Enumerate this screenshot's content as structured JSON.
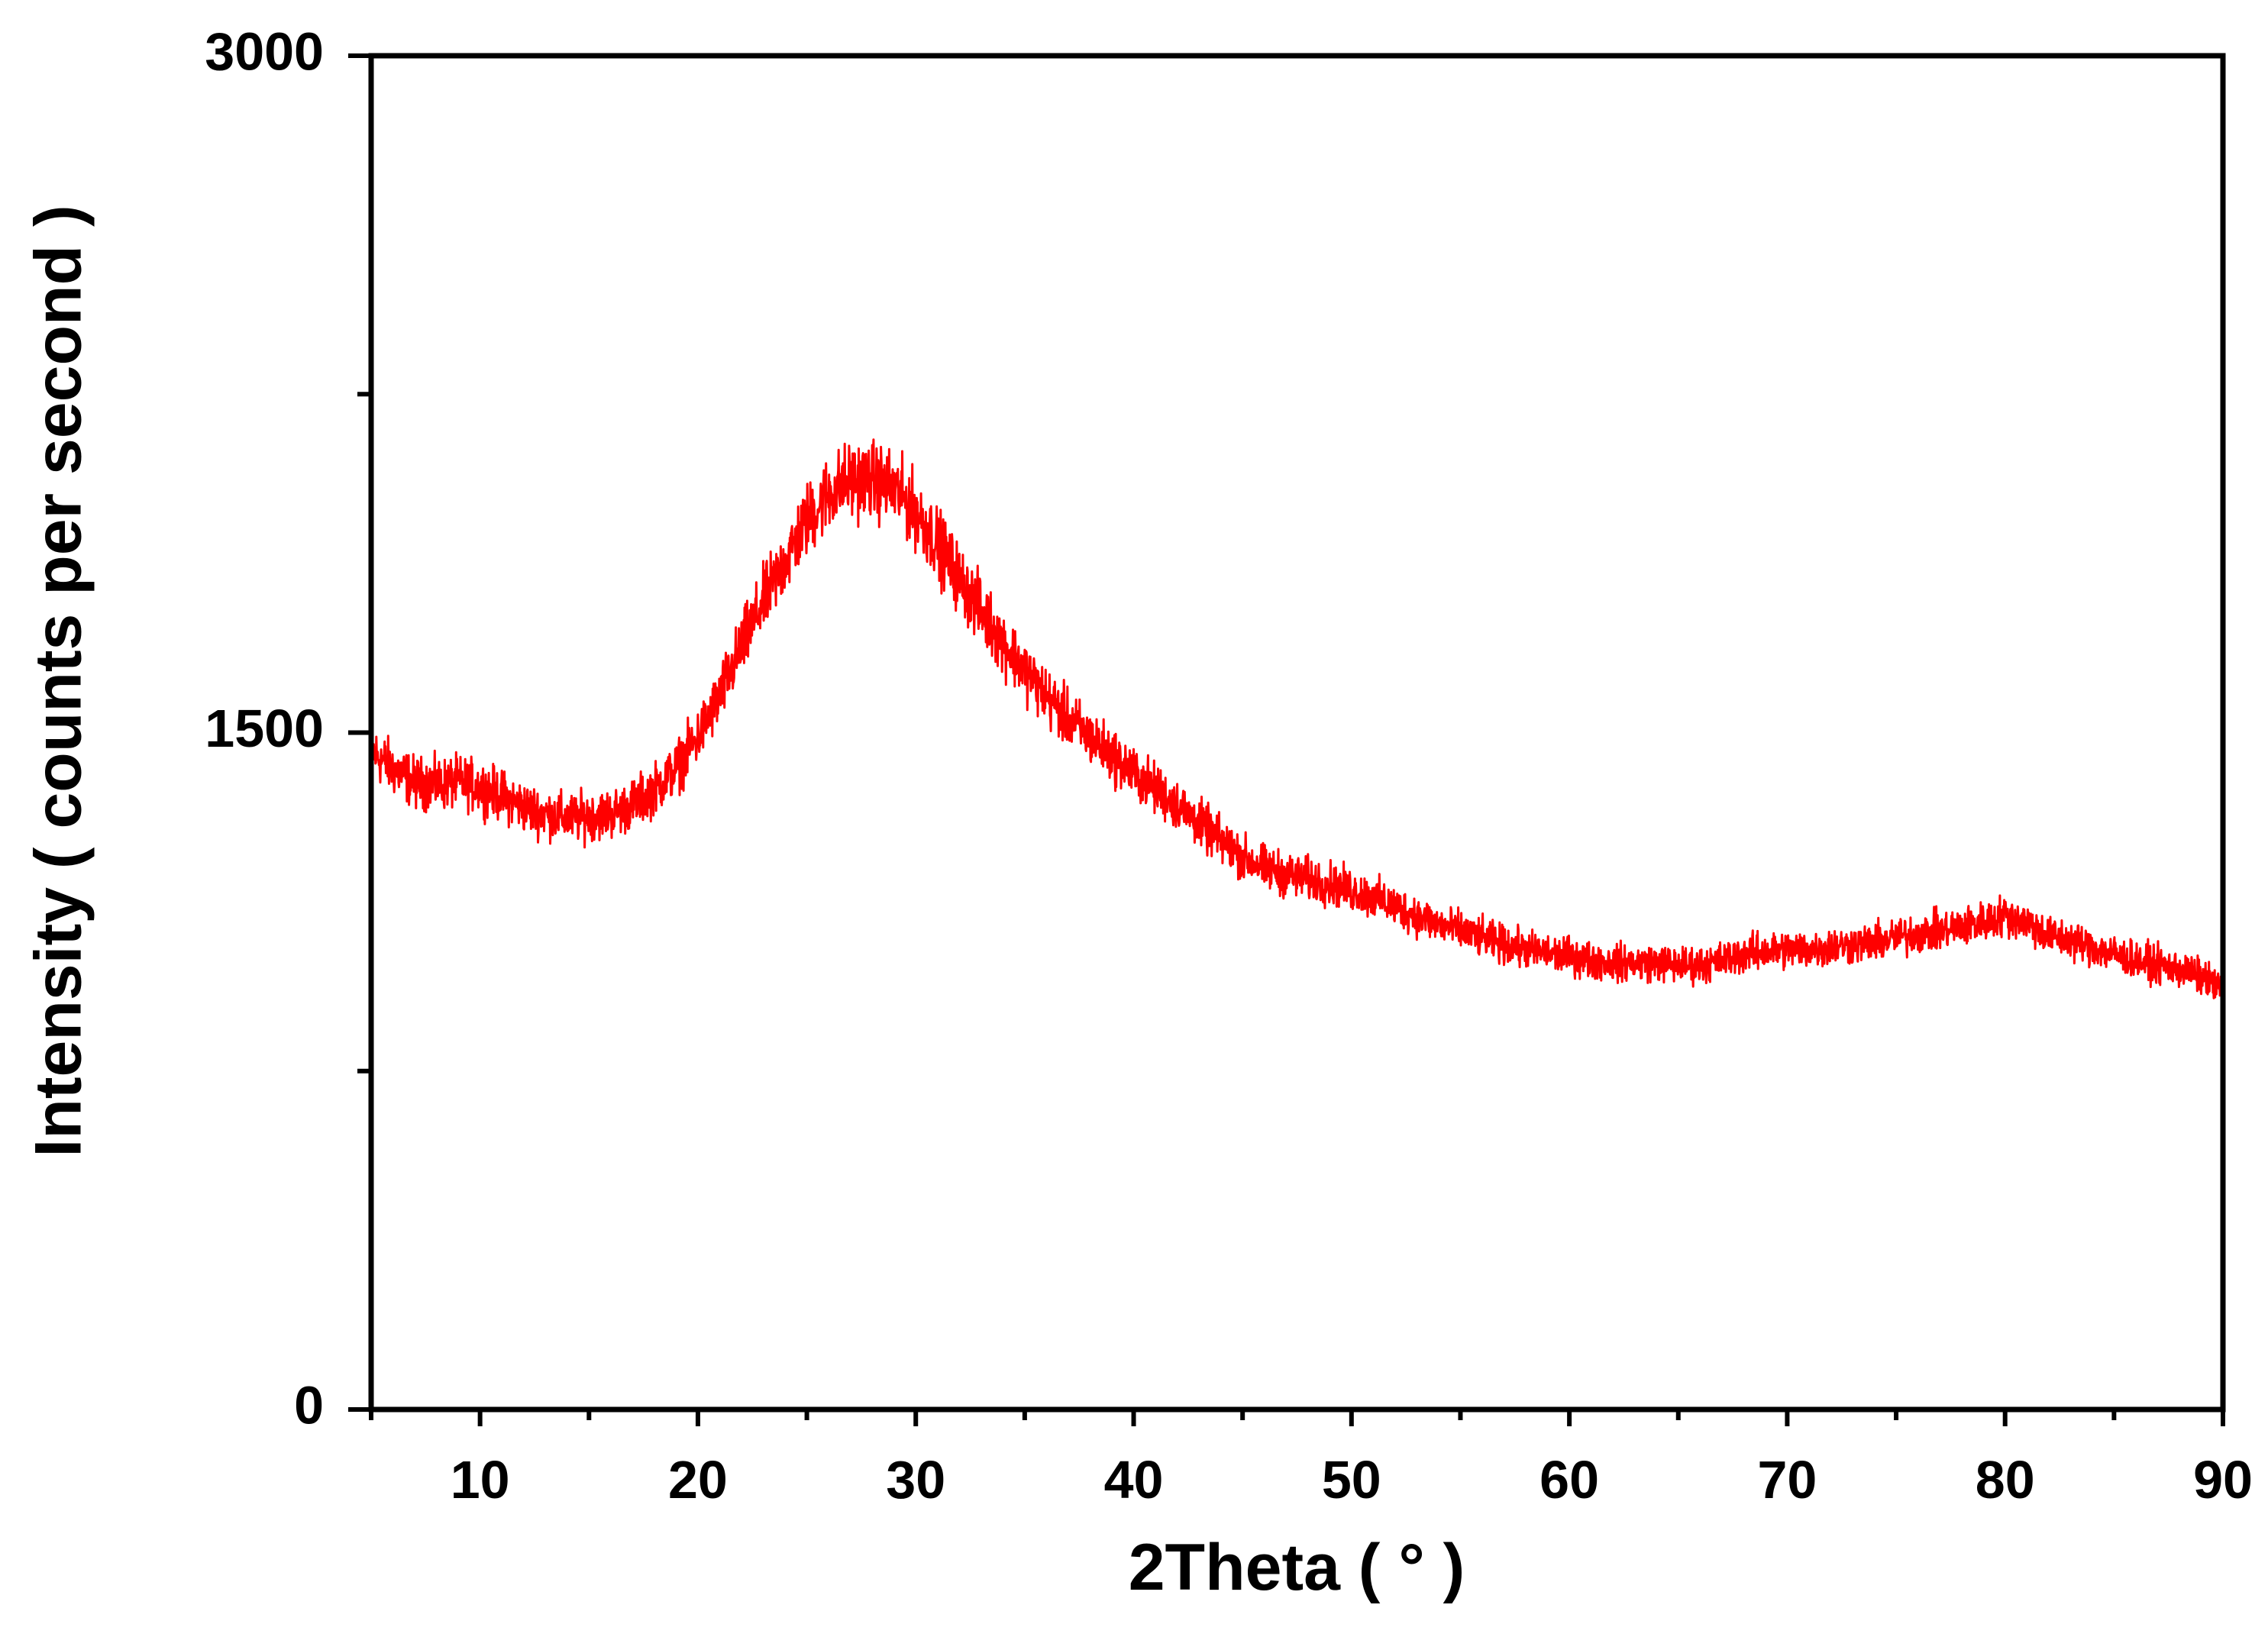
{
  "chart_data": {
    "type": "line",
    "title": "",
    "xlabel": "2Theta ( ° )",
    "ylabel": "Intensity ( counts per second )",
    "xlim": [
      5,
      90
    ],
    "ylim": [
      0,
      3000
    ],
    "x_ticks": [
      {
        "value": 10,
        "label": "10"
      },
      {
        "value": 20,
        "label": "20"
      },
      {
        "value": 30,
        "label": "30"
      },
      {
        "value": 40,
        "label": "40"
      },
      {
        "value": 50,
        "label": "50"
      },
      {
        "value": 60,
        "label": "60"
      },
      {
        "value": 70,
        "label": "70"
      },
      {
        "value": 80,
        "label": "80"
      },
      {
        "value": 90,
        "label": "90"
      }
    ],
    "x_minor_ticks": [
      5,
      15,
      25,
      35,
      45,
      55,
      65,
      75,
      85
    ],
    "y_ticks": [
      {
        "value": 0,
        "label": "0"
      },
      {
        "value": 1500,
        "label": "1500"
      },
      {
        "value": 3000,
        "label": "3000"
      }
    ],
    "y_minor_ticks": [
      750,
      2250
    ],
    "grid": false,
    "legend": "none",
    "series": [
      {
        "color": "#ff0000",
        "x": [
          5,
          6,
          7,
          8,
          9,
          10,
          11,
          12,
          13,
          14,
          15,
          16,
          17,
          18,
          19,
          20,
          21,
          22,
          23,
          24,
          25,
          26,
          27,
          28,
          29,
          30,
          31,
          32,
          33,
          34,
          35,
          36,
          37,
          38,
          39,
          40,
          41,
          42,
          43,
          44,
          45,
          46,
          47,
          48,
          49,
          50,
          51,
          52,
          53,
          54,
          55,
          56,
          57,
          58,
          59,
          60,
          61,
          62,
          63,
          64,
          65,
          66,
          67,
          68,
          69,
          70,
          71,
          72,
          73,
          74,
          75,
          76,
          77,
          78,
          79,
          80,
          81,
          82,
          83,
          84,
          85,
          86,
          87,
          88,
          89,
          90
        ],
        "values": [
          1460,
          1420,
          1390,
          1385,
          1390,
          1380,
          1360,
          1335,
          1320,
          1310,
          1315,
          1320,
          1340,
          1375,
          1420,
          1490,
          1580,
          1690,
          1790,
          1880,
          1970,
          2030,
          2060,
          2060,
          2040,
          1990,
          1920,
          1840,
          1770,
          1700,
          1640,
          1580,
          1530,
          1490,
          1450,
          1410,
          1375,
          1340,
          1300,
          1260,
          1225,
          1200,
          1185,
          1175,
          1165,
          1150,
          1135,
          1115,
          1095,
          1075,
          1060,
          1045,
          1030,
          1020,
          1010,
          1005,
          995,
          990,
          990,
          990,
          985,
          985,
          995,
          1010,
          1015,
          1020,
          1020,
          1025,
          1030,
          1035,
          1045,
          1055,
          1060,
          1070,
          1080,
          1095,
          1080,
          1050,
          1040,
          1025,
          1010,
          995,
          985,
          975,
          960,
          930
        ]
      }
    ]
  }
}
